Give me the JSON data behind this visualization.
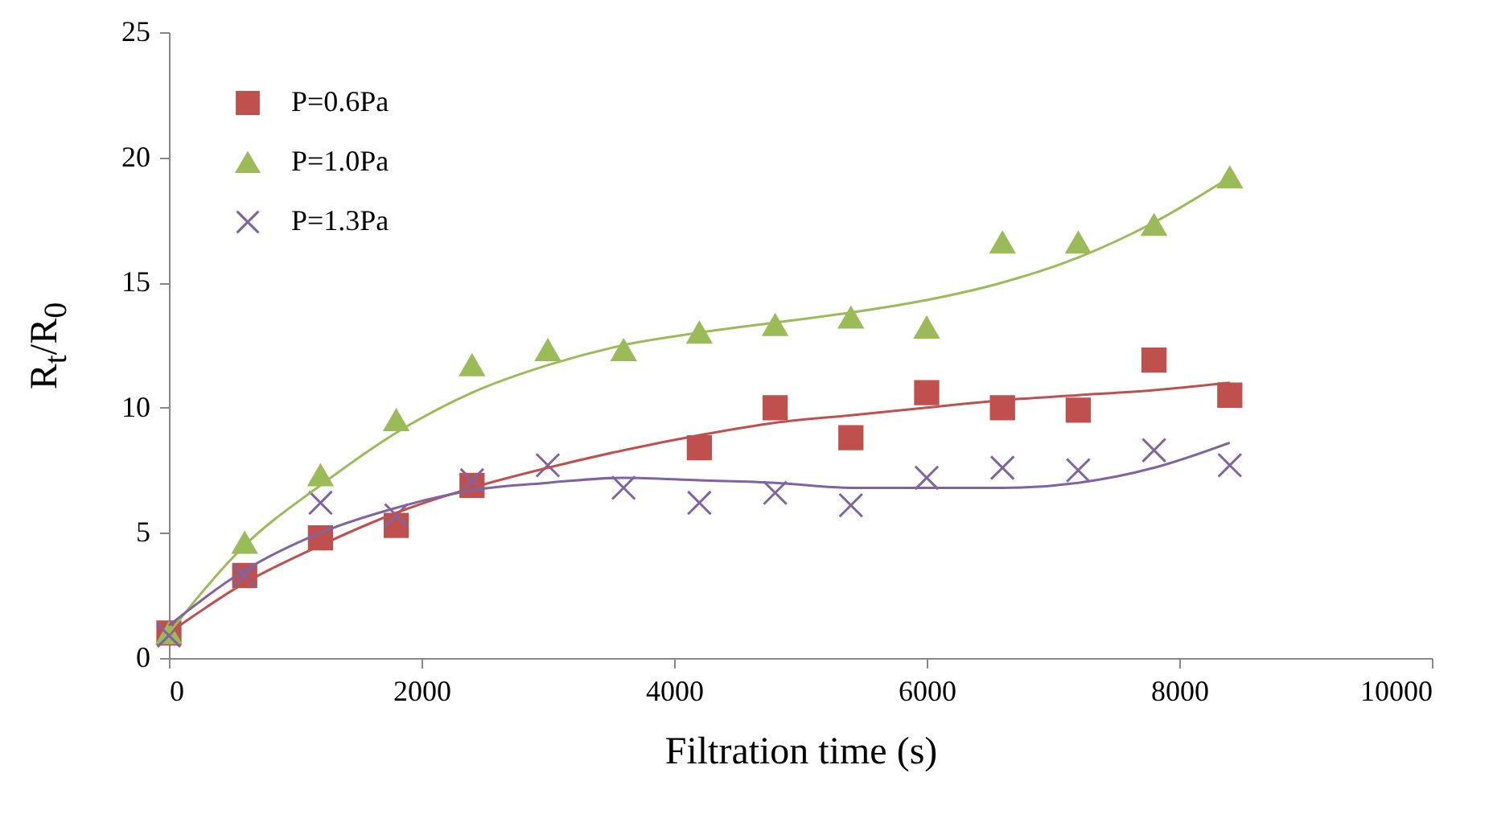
{
  "chart_data": {
    "type": "scatter",
    "xlabel": "Filtration time (s)",
    "ylabel": "R$_{t}$/R$_{0}$",
    "xlim": [
      0,
      10000
    ],
    "xticks": [
      0,
      2000,
      4000,
      6000,
      8000,
      10000
    ],
    "ylim": [
      0,
      25
    ],
    "yticks": [
      0,
      5,
      10,
      15,
      20,
      25
    ],
    "legend": "top left",
    "grid": false,
    "series": [
      {
        "name": "P=0.6Pa",
        "type": "scatter",
        "marker": "square",
        "color": "#c0504d",
        "x": [
          0,
          600,
          1200,
          1800,
          2400,
          4200,
          4800,
          5400,
          6000,
          6600,
          7200,
          7800,
          8400
        ],
        "values": [
          1.0,
          3.3,
          4.8,
          5.3,
          6.9,
          8.4,
          10.0,
          8.8,
          10.6,
          10.0,
          9.9,
          11.9,
          10.5
        ]
      },
      {
        "name": "P=1.0Pa",
        "type": "scatter",
        "marker": "triangle",
        "color": "#9bbb59",
        "x": [
          0,
          600,
          1200,
          1800,
          2400,
          3000,
          3600,
          4200,
          4800,
          5400,
          6000,
          6600,
          7200,
          7800,
          8400
        ],
        "values": [
          1.0,
          4.6,
          7.3,
          9.5,
          11.7,
          12.3,
          12.3,
          13.0,
          13.3,
          13.6,
          13.2,
          16.6,
          16.6,
          17.3,
          19.2
        ]
      },
      {
        "name": "P=1.3Pa",
        "type": "scatter",
        "marker": "cross",
        "color": "#8064a2",
        "x": [
          0,
          600,
          1200,
          1800,
          2400,
          3000,
          3600,
          4200,
          4800,
          5400,
          6000,
          6600,
          7200,
          7800,
          8400
        ],
        "values": [
          0.9,
          3.3,
          6.2,
          5.7,
          7.1,
          7.7,
          6.8,
          6.2,
          6.6,
          6.1,
          7.2,
          7.6,
          7.5,
          8.3,
          7.7
        ]
      },
      {
        "type": "line",
        "marker": "none",
        "color": "#c0504d",
        "x": [
          0,
          600,
          1200,
          1800,
          2400,
          3000,
          3600,
          4200,
          4800,
          5400,
          6000,
          6600,
          7200,
          7800,
          8400
        ],
        "values": [
          1.0,
          3.0,
          4.5,
          5.8,
          6.8,
          7.6,
          8.3,
          8.9,
          9.4,
          9.7,
          10.0,
          10.3,
          10.5,
          10.7,
          11.0
        ]
      },
      {
        "type": "line",
        "marker": "none",
        "color": "#9bbb59",
        "x": [
          0,
          600,
          1200,
          1800,
          2400,
          3000,
          3600,
          4200,
          4800,
          5400,
          6000,
          6600,
          7200,
          7800,
          8400
        ],
        "values": [
          1.0,
          4.5,
          6.9,
          9.0,
          10.6,
          11.7,
          12.5,
          13.0,
          13.4,
          13.8,
          14.3,
          15.0,
          16.0,
          17.4,
          19.2
        ]
      },
      {
        "type": "line",
        "marker": "none",
        "color": "#8064a2",
        "x": [
          0,
          600,
          1200,
          1800,
          2400,
          3000,
          3600,
          4200,
          4800,
          5400,
          6000,
          6600,
          7200,
          7800,
          8400
        ],
        "values": [
          1.3,
          3.5,
          5.0,
          6.0,
          6.7,
          7.0,
          7.2,
          7.1,
          7.0,
          6.8,
          6.8,
          6.8,
          7.0,
          7.6,
          8.6
        ]
      }
    ]
  }
}
